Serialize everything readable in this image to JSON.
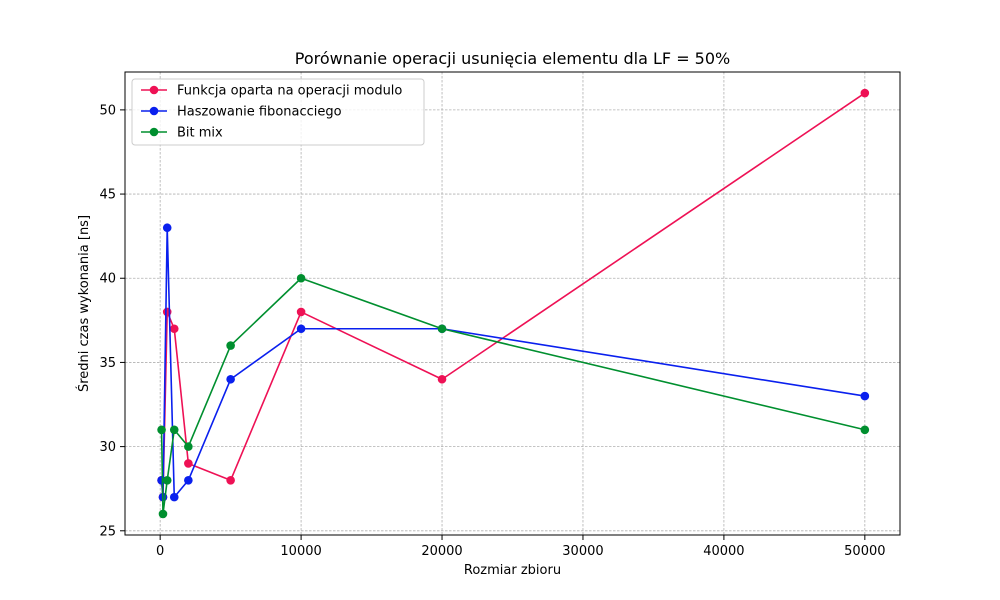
{
  "chart_data": {
    "type": "line",
    "title": "Porównanie operacji usunięcia elementu dla LF = 50%",
    "xlabel": "Rozmiar zbioru",
    "ylabel": "Średni czas wykonania [ns]",
    "xlim": [
      -2495,
      52495
    ],
    "ylim": [
      24.75,
      52.25
    ],
    "x_ticks": [
      0,
      10000,
      20000,
      30000,
      40000,
      50000
    ],
    "x_tick_labels": [
      "0",
      "10000",
      "20000",
      "30000",
      "40000",
      "50000"
    ],
    "y_ticks": [
      25,
      30,
      35,
      40,
      45,
      50
    ],
    "y_tick_labels": [
      "25",
      "30",
      "35",
      "40",
      "45",
      "50"
    ],
    "grid": true,
    "legend_position": "top-left",
    "series": [
      {
        "name": "Funkcja oparta na operacji modulo",
        "color": "#ee1155",
        "x": [
          100,
          200,
          500,
          1000,
          2000,
          5000,
          10000,
          20000,
          50000
        ],
        "y": [
          28,
          27,
          38,
          37,
          29,
          28,
          38,
          34,
          51
        ]
      },
      {
        "name": "Haszowanie fibonacciego",
        "color": "#0a20ee",
        "x": [
          100,
          200,
          500,
          1000,
          2000,
          5000,
          10000,
          20000,
          50000
        ],
        "y": [
          28,
          27,
          43,
          27,
          28,
          34,
          37,
          37,
          33
        ]
      },
      {
        "name": "Bit mix",
        "color": "#008f2f",
        "x": [
          100,
          200,
          500,
          1000,
          2000,
          5000,
          10000,
          20000,
          50000
        ],
        "y": [
          31,
          26,
          28,
          31,
          30,
          36,
          40,
          37,
          31
        ]
      }
    ]
  }
}
